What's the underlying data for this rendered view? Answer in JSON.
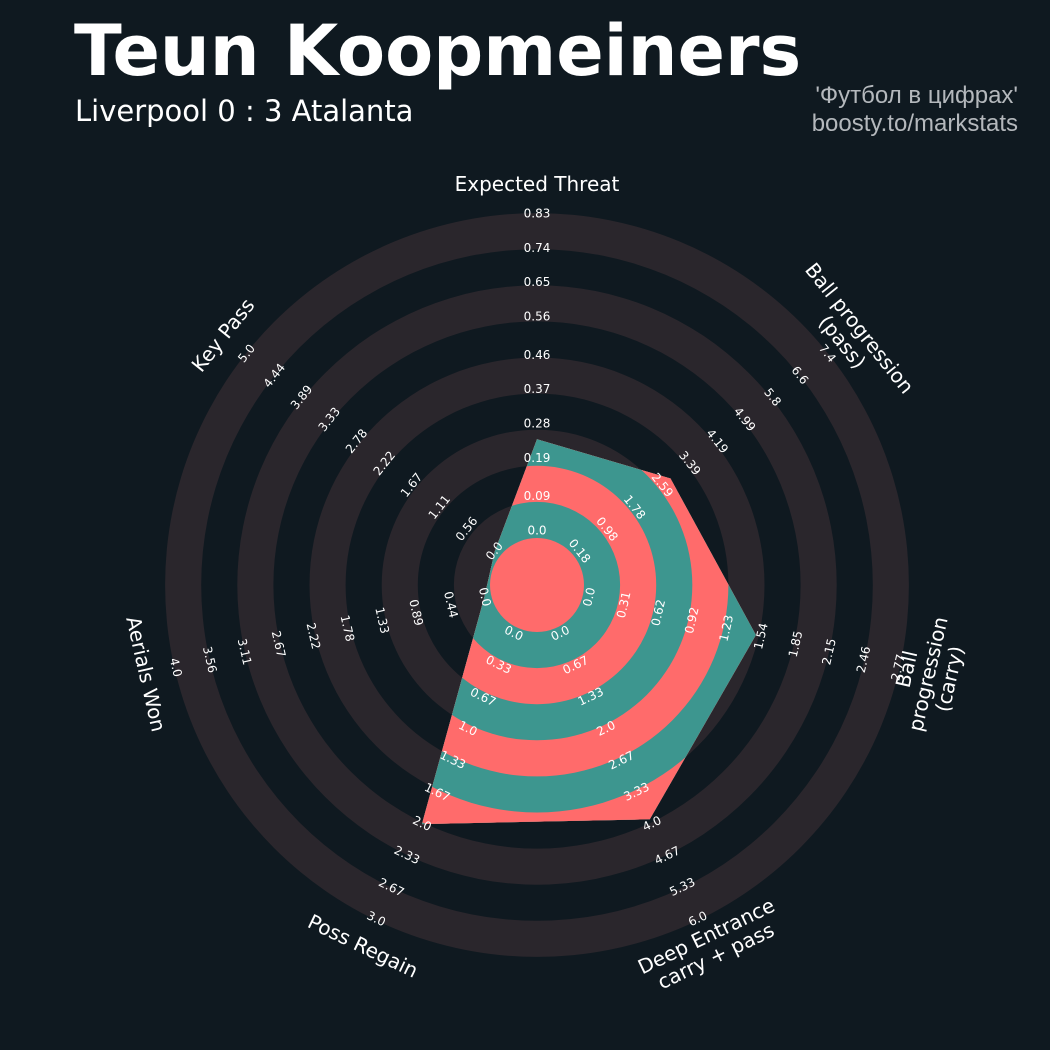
{
  "chart_data": {
    "type": "radar",
    "title": "Teun Koopmeiners",
    "subtitle": "Liverpool 0 : 3 Atalanta",
    "credit": [
      "'Футбол в цифрах'",
      "boosty.to/markstats"
    ],
    "categories": [
      "Expected Threat",
      "Ball progression (pass)",
      "Ball progression (carry)",
      "Deep Entrance\ncarry + pass",
      "Poss Regain",
      "Aerials Won",
      "Key Pass"
    ],
    "values": [
      0.24,
      2.84,
      1.49,
      3.9,
      2.0,
      0.0,
      0.0
    ],
    "color": "#ff6b6b",
    "alt_color": "#3d968f",
    "ring_color": "#2a262c",
    "axes": [
      {
        "lim": [
          0,
          0.83
        ],
        "ticks": [
          {
            "value": 0,
            "label": "0.0"
          },
          0.09,
          0.19,
          0.28,
          0.37,
          0.46,
          0.56,
          0.65,
          0.74,
          0.83
        ]
      },
      {
        "lim": [
          0.18,
          7.4
        ],
        "ticks": [
          0.18,
          0.98,
          1.78,
          2.59,
          3.39,
          4.19,
          4.99,
          5.8,
          6.6,
          7.4
        ]
      },
      {
        "lim": [
          0,
          2.77
        ],
        "ticks": [
          {
            "value": 0,
            "label": "0.0"
          },
          0.31,
          0.62,
          0.92,
          1.23,
          1.54,
          1.85,
          2.15,
          2.46,
          2.77
        ]
      },
      {
        "lim": [
          0,
          6
        ],
        "ticks": [
          {
            "value": 0,
            "label": "0.0"
          },
          0.67,
          1.33,
          {
            "value": 2,
            "label": "2.0"
          },
          2.67,
          3.33,
          {
            "value": 4,
            "label": "4.0"
          },
          4.67,
          5.33,
          {
            "value": 6,
            "label": "6.0"
          }
        ]
      },
      {
        "lim": [
          0,
          3
        ],
        "ticks": [
          {
            "value": 0,
            "label": "0.0"
          },
          0.33,
          0.67,
          {
            "value": 1,
            "label": "1.0"
          },
          1.33,
          1.67,
          {
            "value": 2,
            "label": "2.0"
          },
          2.33,
          2.67,
          {
            "value": 3,
            "label": "3.0"
          }
        ]
      },
      {
        "lim": [
          0,
          4
        ],
        "ticks": [
          {
            "value": 0,
            "label": "0.0"
          },
          0.44,
          0.89,
          1.33,
          1.78,
          2.22,
          2.67,
          3.11,
          3.56,
          {
            "value": 4,
            "label": "4.0"
          }
        ]
      },
      {
        "lim": [
          0,
          5
        ],
        "ticks": [
          {
            "value": 0,
            "label": "0.0"
          },
          0.56,
          1.11,
          1.67,
          2.22,
          2.78,
          3.33,
          3.89,
          4.44,
          {
            "value": 5,
            "label": "5.0"
          }
        ]
      }
    ]
  }
}
